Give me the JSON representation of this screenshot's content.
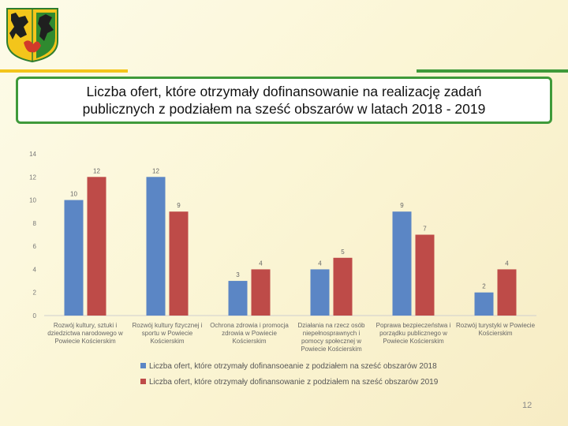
{
  "header": {
    "title": "Liczba ofert, które otrzymały dofinansowanie na realizację zadań\npublicznych z podziałem na sześć obszarów w latach 2018 - 2019"
  },
  "colors": {
    "series_2018": "#5b86c5",
    "series_2019": "#be4b48",
    "accent_yellow": "#f3c51b",
    "accent_green": "#3f9a3a"
  },
  "icons": {
    "crest": "coat-of-arms-icon"
  },
  "chart_data": {
    "type": "bar",
    "categories": [
      "Rozwój kultury, sztuki i\ndziedzictwa narodowego w\nPowiecie Kościerskim",
      "Rozwój kultury fizycznej i\nsportu w Powiecie\nKościerskim",
      "Ochrona zdrowia i promocja\nzdrowia w Powiecie\nKościerskim",
      "Działania na rzecz osób\nniepełnosprawnych i\npomocy społecznej w\nPowiecie Kościerskim",
      "Poprawa bezpieczeństwa i\nporządku publicznego w\nPowiecie Kościerskim",
      "Rozwój turystyki w Powiecie\nKościerskim"
    ],
    "series": [
      {
        "name": "Liczba ofert, które otrzymały dofinansoeanie z podziałem na sześć obszarów 2018",
        "values": [
          10,
          12,
          3,
          4,
          9,
          2
        ]
      },
      {
        "name": "Liczba ofert, które otrzymały dofinansowanie z podziałem na sześć obszarów 2019",
        "values": [
          12,
          9,
          4,
          5,
          7,
          4
        ]
      }
    ],
    "ylim": [
      0,
      14
    ],
    "yticks": [
      0,
      2,
      4,
      6,
      8,
      10,
      12,
      14
    ],
    "grid": false,
    "legend_position": "bottom"
  },
  "footer": {
    "page_number": "12"
  }
}
